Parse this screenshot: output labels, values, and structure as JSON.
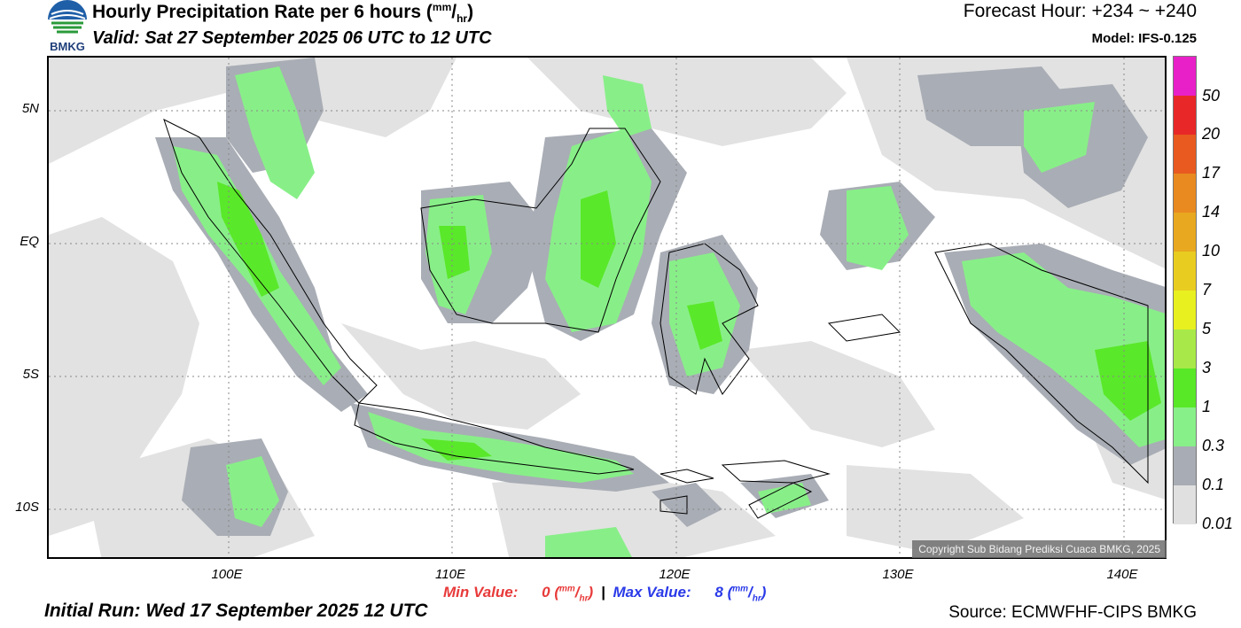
{
  "header": {
    "title": "Hourly Precipitation Rate per 6 hours (",
    "title_unit_num": "mm",
    "title_unit_den": "hr",
    "title_close": ")",
    "valid": "Valid: Sat 27 September 2025 06 UTC to 12 UTC",
    "forecast_hour": "Forecast Hour: +234 ~ +240",
    "model": "Model: IFS-0.125"
  },
  "logo": {
    "text": "BMKG",
    "icon": "bmkg-globe-icon"
  },
  "map": {
    "lat_labels": [
      "5N",
      "EQ",
      "5S",
      "10S"
    ],
    "lon_labels": [
      "100E",
      "110E",
      "120E",
      "130E",
      "140E"
    ],
    "copyright": "Copyright Sub Bidang Prediksi Cuaca BMKG, 2025"
  },
  "legend": {
    "labels": [
      "50",
      "20",
      "17",
      "14",
      "10",
      "7",
      "5",
      "3",
      "1",
      "0.3",
      "0.1",
      "0.01"
    ],
    "colors": [
      "#e820c8",
      "#e82828",
      "#e85a20",
      "#e88a20",
      "#e8a820",
      "#e8cc20",
      "#e8f020",
      "#a8e848",
      "#58e828",
      "#88f088",
      "#a8acb4",
      "#e0e0e0"
    ]
  },
  "footer": {
    "min_label": "Min Value:",
    "min_value": "0",
    "separator": "|",
    "max_label": "Max Value:",
    "max_value": "8",
    "unit_num": "mm",
    "unit_den": "hr",
    "initial_run": "Initial Run: Wed 17 September 2025 12 UTC",
    "source": "Source: ECMWFHF-CIPS BMKG"
  }
}
